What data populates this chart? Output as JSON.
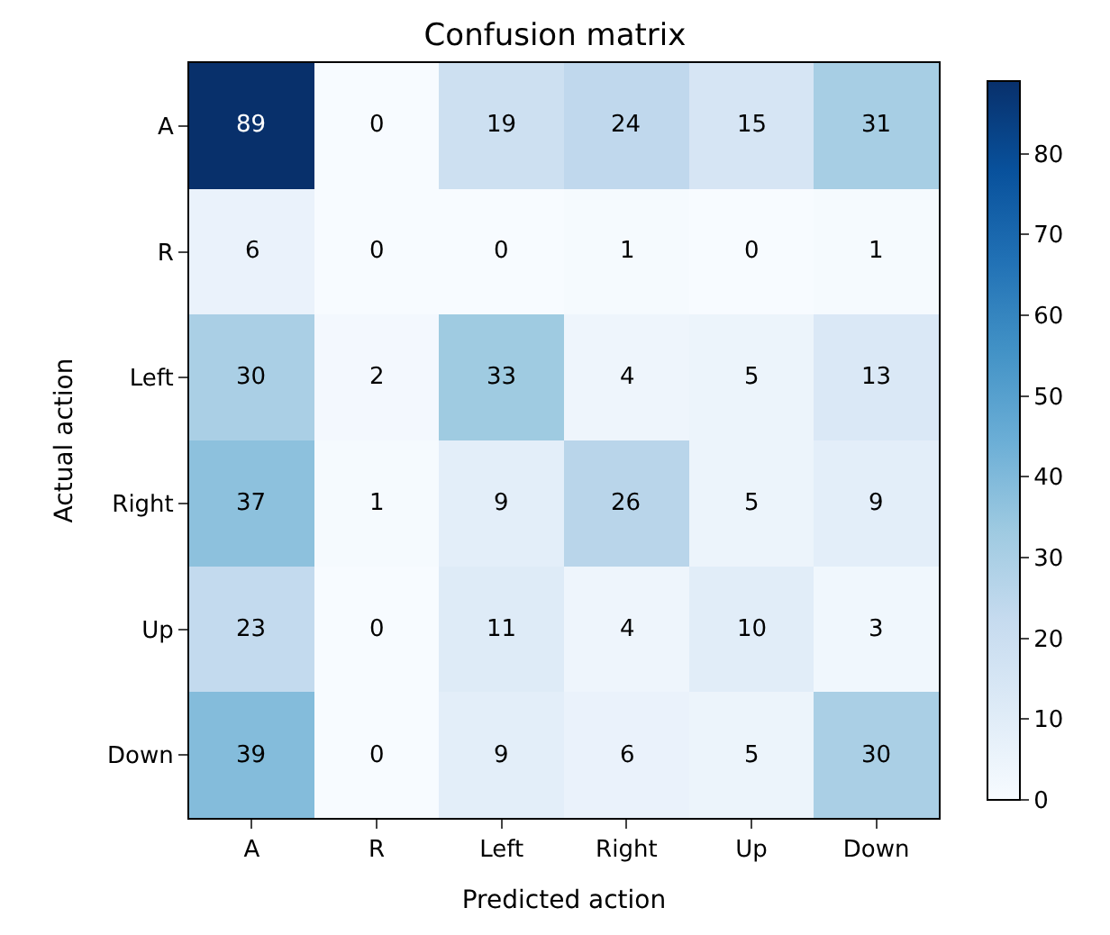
{
  "chart_data": {
    "type": "heatmap",
    "title": "Confusion matrix",
    "xlabel": "Predicted action",
    "ylabel": "Actual action",
    "categories": [
      "A",
      "R",
      "Left",
      "Right",
      "Up",
      "Down"
    ],
    "y_categories": [
      "A",
      "R",
      "Left",
      "Right",
      "Up",
      "Down"
    ],
    "cells": [
      [
        89,
        0,
        19,
        24,
        15,
        31
      ],
      [
        6,
        0,
        0,
        1,
        0,
        1
      ],
      [
        30,
        2,
        33,
        4,
        5,
        13
      ],
      [
        37,
        1,
        9,
        26,
        5,
        9
      ],
      [
        23,
        0,
        11,
        4,
        10,
        3
      ],
      [
        39,
        0,
        9,
        6,
        5,
        30
      ]
    ],
    "clim": [
      0,
      89
    ],
    "cticks": [
      0,
      10,
      20,
      30,
      40,
      50,
      60,
      70,
      80
    ],
    "data_labels": true
  }
}
